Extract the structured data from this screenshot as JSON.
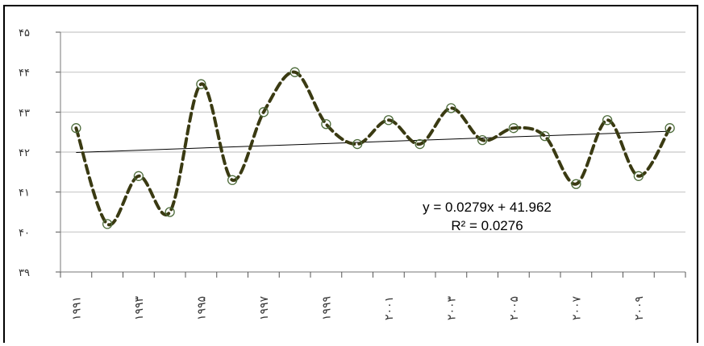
{
  "chart_data": {
    "type": "line",
    "x": [
      1991,
      1992,
      1993,
      1994,
      1995,
      1996,
      1997,
      1998,
      1999,
      2000,
      2001,
      2002,
      2003,
      2004,
      2005,
      2006,
      2007,
      2008,
      2009,
      2010
    ],
    "series": [
      {
        "values": [
          42.6,
          40.2,
          41.4,
          40.5,
          43.7,
          41.3,
          43.0,
          44.0,
          42.7,
          42.2,
          42.8,
          42.2,
          43.1,
          42.3,
          42.6,
          42.4,
          41.2,
          42.8,
          41.4,
          42.6
        ]
      }
    ],
    "ylim": [
      39,
      45
    ],
    "yticks": [
      {
        "value": 39,
        "label": "۳۹"
      },
      {
        "value": 40,
        "label": "۴۰"
      },
      {
        "value": 41,
        "label": "۴۱"
      },
      {
        "value": 42,
        "label": "۴۲"
      },
      {
        "value": 43,
        "label": "۴۳"
      },
      {
        "value": 44,
        "label": "۴۴"
      },
      {
        "value": 45,
        "label": "۴۵"
      }
    ],
    "xtick_labels": [
      {
        "index": 0,
        "label": "۱۹۹۱"
      },
      {
        "index": 2,
        "label": "۱۹۹۳"
      },
      {
        "index": 4,
        "label": "۱۹۹۵"
      },
      {
        "index": 6,
        "label": "۱۹۹۷"
      },
      {
        "index": 8,
        "label": "۱۹۹۹"
      },
      {
        "index": 10,
        "label": "۲۰۰۱"
      },
      {
        "index": 12,
        "label": "۲۰۰۳"
      },
      {
        "index": 14,
        "label": "۲۰۰۵"
      },
      {
        "index": 16,
        "label": "۲۰۰۷"
      },
      {
        "index": 18,
        "label": "۲۰۰۹"
      }
    ],
    "trendline": {
      "slope": 0.0279,
      "intercept": 41.962
    },
    "equation": "y = 0.0279x + 41.962",
    "r_squared": "R² = 0.0276",
    "grid": true,
    "colors": {
      "series": "#3a3a12",
      "grid": "#c8c8c8",
      "trend": "#000000",
      "marker": "#4d6b3a"
    }
  }
}
